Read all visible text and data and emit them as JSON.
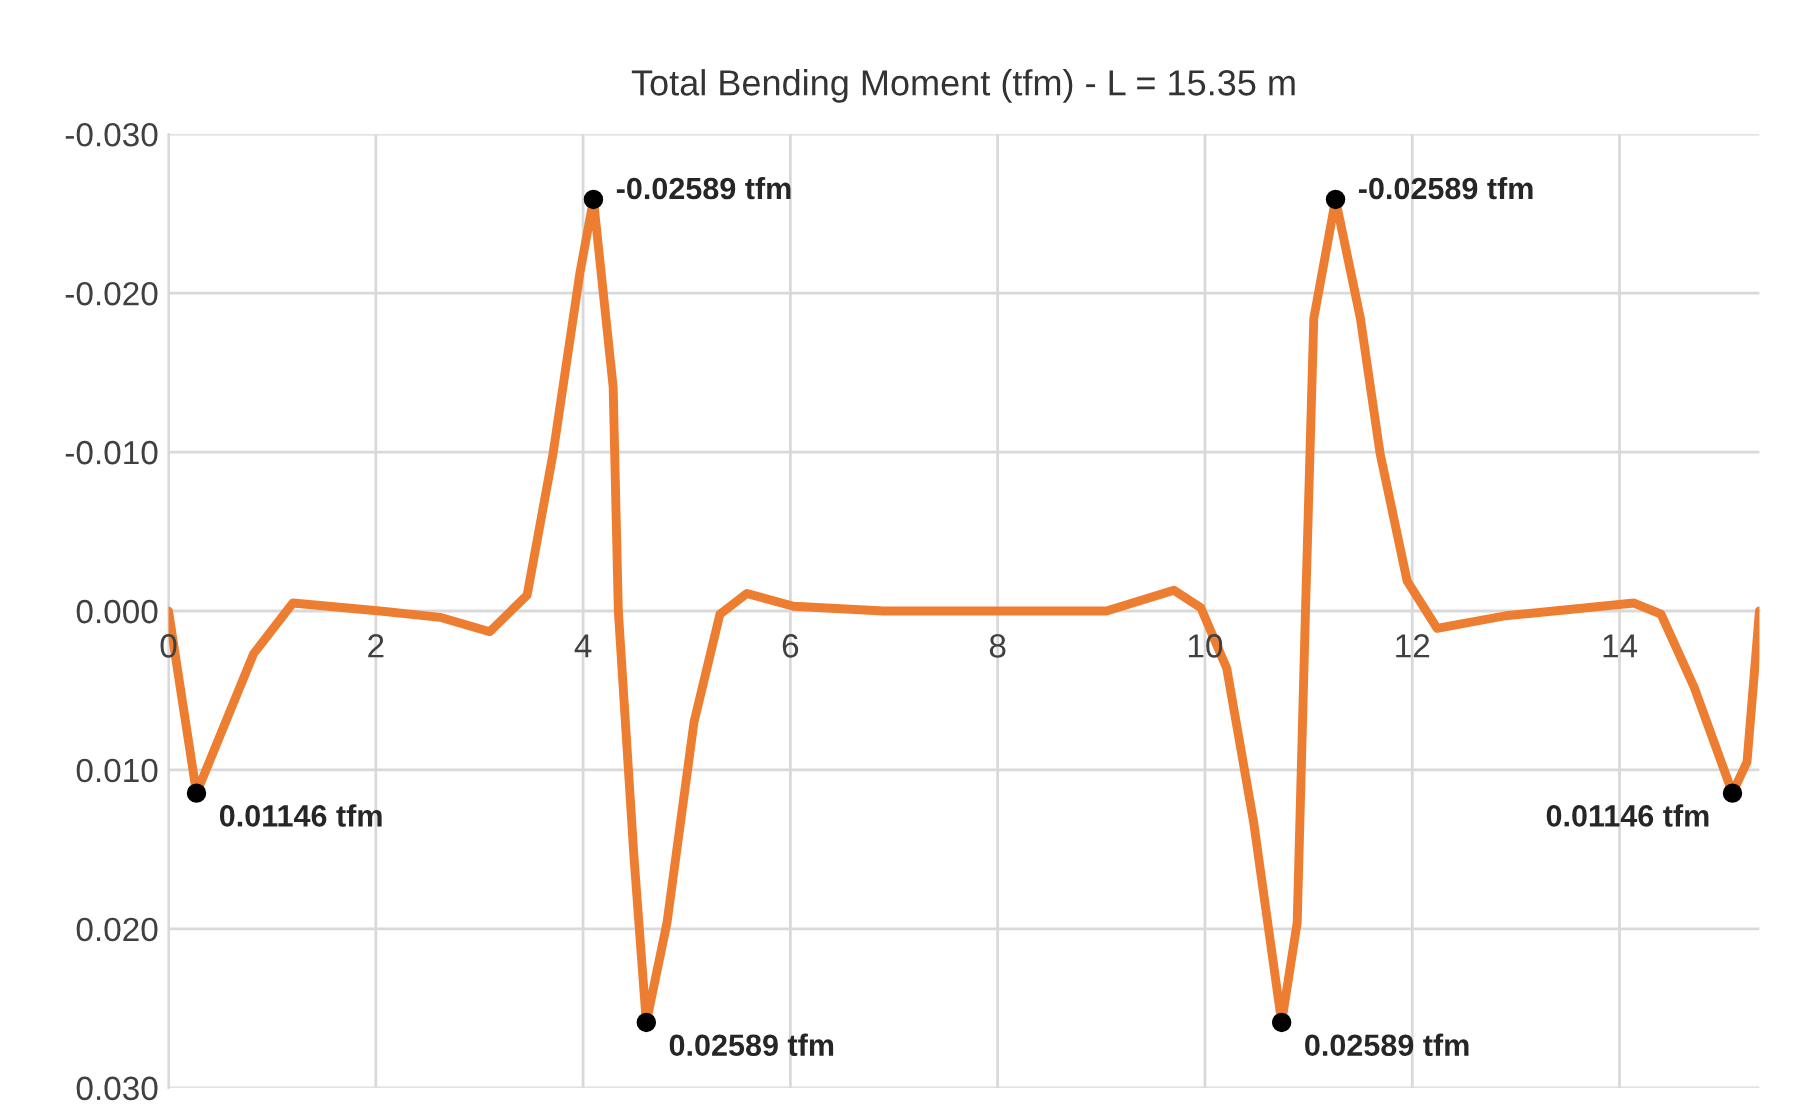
{
  "chart_data": {
    "type": "line",
    "title": "Total Bending Moment (tfm) - L = 15.35 m",
    "series": [
      {
        "color": "#ed7d31",
        "x": [
          0,
          0.27,
          0.82,
          1.2,
          2.04,
          2.62,
          3.1,
          3.46,
          3.71,
          3.97,
          4.1,
          4.29,
          4.34,
          4.49,
          4.61,
          4.81,
          5.07,
          5.32,
          5.58,
          6.03,
          6.9,
          7.45,
          9.05,
          9.7,
          9.96,
          10.21,
          10.47,
          10.74,
          10.89,
          10.97,
          11.05,
          11.26,
          11.5,
          11.69,
          11.95,
          12.24,
          12.9,
          14.14,
          14.4,
          14.72,
          15.09,
          15.23,
          15.35
        ],
        "values": [
          0,
          0.01146,
          0.0027,
          -0.0005,
          0,
          0.0004,
          0.0013,
          -0.001,
          -0.0099,
          -0.0213,
          -0.02589,
          -0.0141,
          0,
          0.0154,
          0.02589,
          0.0196,
          0.007,
          0.0002,
          -0.0011,
          -0.0003,
          0,
          0,
          0,
          -0.0013,
          -0.0002,
          0.0036,
          0.0133,
          0.02589,
          0.0196,
          0,
          -0.0184,
          -0.02589,
          -0.0184,
          -0.0099,
          -0.0019,
          0.0011,
          0.0003,
          -0.0005,
          0.0002,
          0.0048,
          0.01146,
          0.0095,
          0
        ]
      }
    ],
    "marker": "none",
    "line_style": "solid",
    "xlim": [
      0,
      15.35
    ],
    "xticks": [
      0,
      2,
      4,
      6,
      8,
      10,
      12,
      14
    ],
    "ylim": [
      0.03,
      -0.03
    ],
    "yticks": [
      {
        "value": -0.03,
        "label": "-0.030"
      },
      {
        "value": -0.02,
        "label": "-0.020"
      },
      {
        "value": -0.01,
        "label": "-0.010"
      },
      {
        "value": 0,
        "label": "0.000"
      },
      {
        "value": 0.01,
        "label": "0.010"
      },
      {
        "value": 0.02,
        "label": "0.020"
      },
      {
        "value": 0.03,
        "label": "0.030"
      }
    ],
    "grid": true,
    "legend": false,
    "annotations": [
      {
        "text": "0.01146 tfm",
        "x": 0.27,
        "y": 0.01146
      },
      {
        "text": "-0.02589 tfm",
        "x": 4.1,
        "y": -0.02589
      },
      {
        "text": "0.02589 tfm",
        "x": 4.61,
        "y": 0.02589
      },
      {
        "text": "0.02589 tfm",
        "x": 10.74,
        "y": 0.02589
      },
      {
        "text": "-0.02589 tfm",
        "x": 11.26,
        "y": -0.02589
      },
      {
        "text": "0.01146 tfm",
        "x": 15.09,
        "y": 0.01146
      }
    ]
  }
}
